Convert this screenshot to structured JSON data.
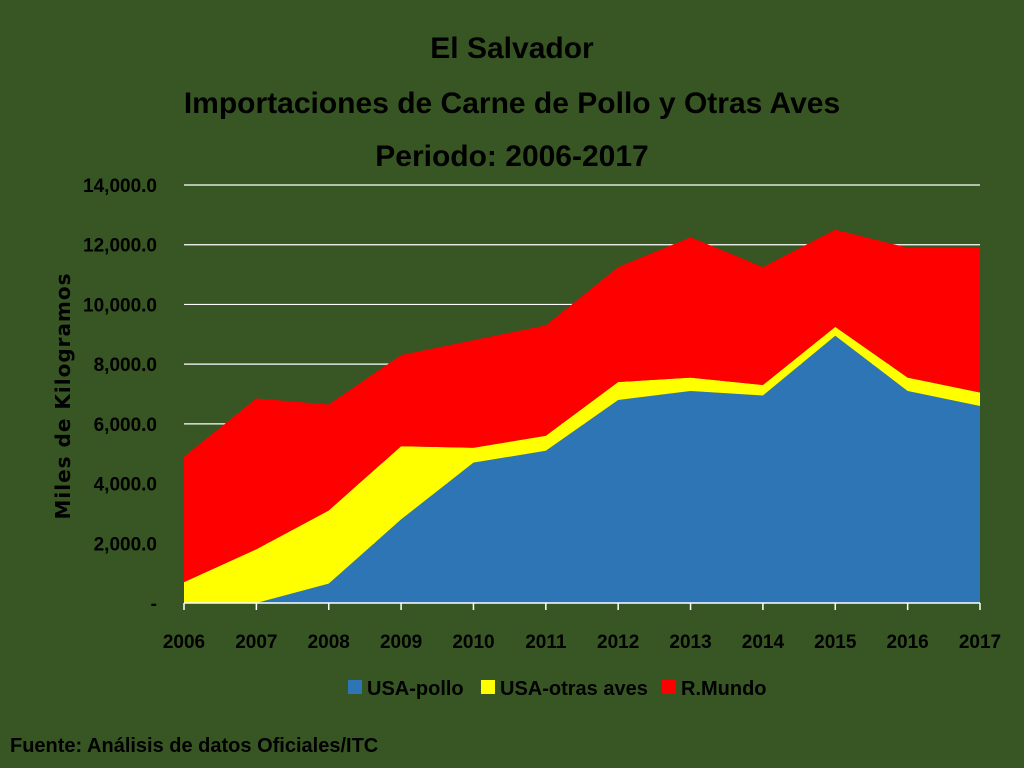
{
  "chart_data": {
    "type": "area",
    "stacked": true,
    "title": [
      "El Salvador",
      "Importaciones de Carne de Pollo y Otras Aves",
      "Periodo: 2006-2017"
    ],
    "ylabel": "Miles de Kilogramos",
    "xlabel": "",
    "categories": [
      "2006",
      "2007",
      "2008",
      "2009",
      "2010",
      "2011",
      "2012",
      "2013",
      "2014",
      "2015",
      "2016",
      "2017"
    ],
    "ylim": [
      0,
      14000
    ],
    "yticks": [
      0,
      2000,
      4000,
      6000,
      8000,
      10000,
      12000,
      14000
    ],
    "ytick_labels": [
      "-",
      "2,000.0",
      "4,000.0",
      "6,000.0",
      "8,000.0",
      "10,000.0",
      "12,000.0",
      "14,000.0"
    ],
    "grid": true,
    "legend_position": "bottom",
    "series": [
      {
        "name": "USA-pollo",
        "color": "#2E75B6",
        "values": [
          0,
          0,
          650,
          2800,
          4700,
          5100,
          6800,
          7100,
          6950,
          8950,
          7100,
          6600
        ]
      },
      {
        "name": "USA-otras aves",
        "color": "#FFFF00",
        "values": [
          700,
          1800,
          2450,
          2450,
          500,
          500,
          600,
          450,
          350,
          300,
          450,
          450
        ]
      },
      {
        "name": "R.Mundo",
        "color": "#FF0000",
        "values": [
          4200,
          5050,
          3550,
          3050,
          3600,
          3700,
          3850,
          4700,
          3950,
          3250,
          4350,
          4850
        ]
      }
    ]
  },
  "source": "Fuente: Análisis de datos Oficiales/ITC"
}
